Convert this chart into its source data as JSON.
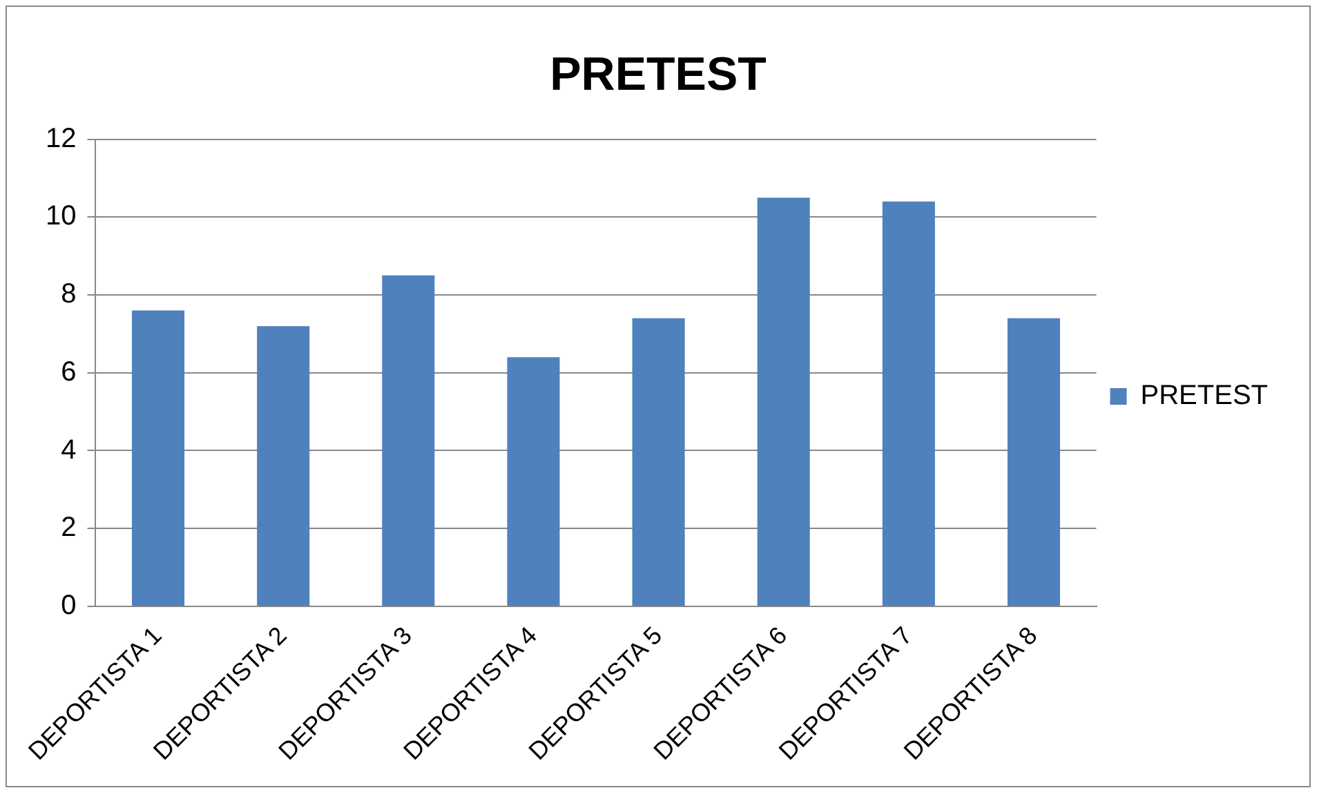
{
  "chart_data": {
    "type": "bar",
    "title": "PRETEST",
    "categories": [
      "DEPORTISTA 1",
      "DEPORTISTA 2",
      "DEPORTISTA 3",
      "DEPORTISTA 4",
      "DEPORTISTA 5",
      "DEPORTISTA 6",
      "DEPORTISTA 7",
      "DEPORTISTA 8"
    ],
    "series": [
      {
        "name": "PRETEST",
        "color": "#4f81bd",
        "values": [
          7.6,
          7.2,
          8.5,
          6.4,
          7.4,
          10.5,
          10.4,
          7.4
        ]
      }
    ],
    "ylim": [
      0,
      12
    ],
    "yticks": [
      0,
      2,
      4,
      6,
      8,
      10,
      12
    ],
    "grid": "y",
    "legend": "right"
  }
}
